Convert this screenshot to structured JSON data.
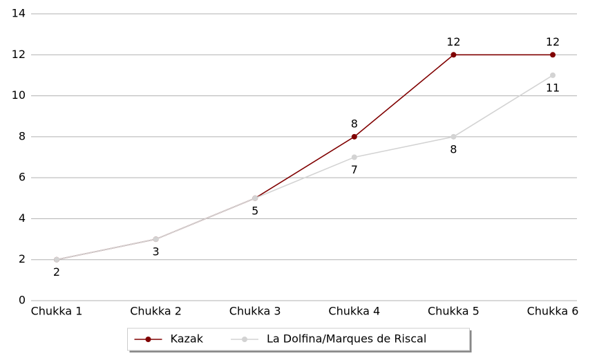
{
  "chart_data": {
    "type": "line",
    "categories": [
      "Chukka 1",
      "Chukka 2",
      "Chukka 3",
      "Chukka 4",
      "Chukka 5",
      "Chukka 6"
    ],
    "series": [
      {
        "name": "Kazak",
        "color": "#800000",
        "values": [
          2,
          3,
          5,
          8,
          12,
          12
        ]
      },
      {
        "name": "La Dolfina/Marques de Riscal",
        "color": "#d3d3d3",
        "values": [
          2,
          3,
          5,
          7,
          8,
          11
        ]
      }
    ],
    "ylim": [
      0,
      14
    ],
    "yticks": [
      0,
      2,
      4,
      6,
      8,
      10,
      12,
      14
    ],
    "grid": true,
    "legend": "bottom"
  }
}
